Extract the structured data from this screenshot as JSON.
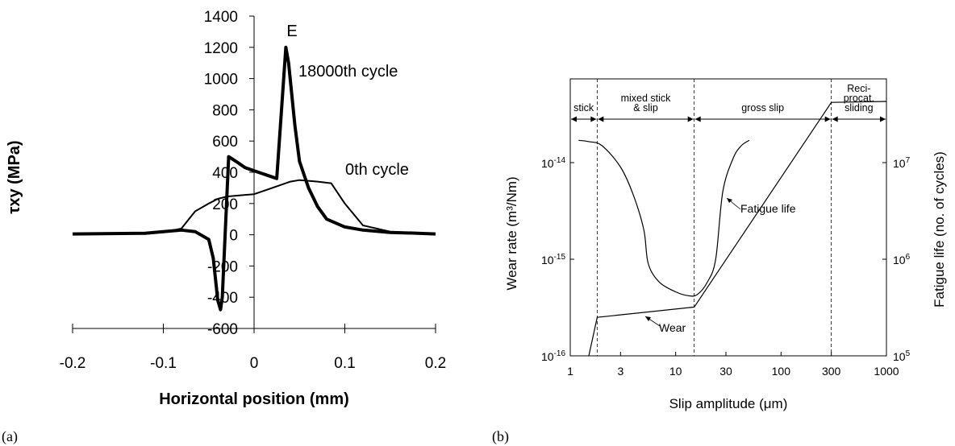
{
  "panels": {
    "a": "(a)",
    "b": "(b)"
  },
  "chart_data": [
    {
      "type": "line",
      "title": "",
      "xlabel": "Horizontal position (mm)",
      "ylabel": "τxy (MPa)",
      "xlim": [
        -0.2,
        0.2
      ],
      "ylim": [
        -600,
        1400
      ],
      "x_ticks": [
        -0.2,
        -0.1,
        0,
        0.1,
        0.2
      ],
      "x_tick_labels": [
        "-0.2",
        "-0.1",
        "0",
        "0.1",
        "0.2"
      ],
      "y_ticks": [
        -600,
        -400,
        -200,
        0,
        200,
        400,
        600,
        800,
        1000,
        1200,
        1400
      ],
      "y_tick_labels": [
        "-600",
        "-400",
        "-200",
        "0",
        "200",
        "400",
        "600",
        "800",
        "1000",
        "1200",
        "1400"
      ],
      "grid": false,
      "annotations": {
        "peak_label": "E",
        "label_18000": "18000th cycle",
        "label_0": "0th cycle"
      },
      "series": [
        {
          "name": "18000th cycle",
          "x": [
            -0.2,
            -0.12,
            -0.1,
            -0.08,
            -0.065,
            -0.05,
            -0.045,
            -0.04,
            -0.037,
            -0.035,
            -0.028,
            -0.02,
            -0.01,
            0,
            0.02,
            0.025,
            0.035,
            0.038,
            0.045,
            0.05,
            0.06,
            0.07,
            0.08,
            0.1,
            0.12,
            0.15,
            0.18,
            0.2
          ],
          "y": [
            5,
            10,
            20,
            30,
            20,
            -30,
            -150,
            -420,
            -480,
            -400,
            500,
            470,
            430,
            410,
            370,
            360,
            1200,
            1100,
            700,
            470,
            300,
            180,
            100,
            50,
            30,
            15,
            10,
            5
          ]
        },
        {
          "name": "0th cycle",
          "x": [
            -0.2,
            -0.1,
            -0.08,
            -0.065,
            -0.05,
            -0.04,
            -0.03,
            -0.02,
            -0.01,
            0,
            0.02,
            0.04,
            0.05,
            0.07,
            0.085,
            0.1,
            0.12,
            0.15,
            0.2
          ],
          "y": [
            5,
            15,
            40,
            150,
            200,
            230,
            245,
            250,
            255,
            260,
            300,
            340,
            350,
            340,
            330,
            200,
            60,
            20,
            5
          ]
        }
      ]
    },
    {
      "type": "line",
      "title": "",
      "xlabel": "Slip amplitude (μm)",
      "ylabel": "Wear rate (m³/Nm)",
      "y2label": "Fatigue life (no. of cycles)",
      "x_scale": "log",
      "xlim": [
        1,
        1000
      ],
      "x_ticks": [
        1,
        3,
        10,
        30,
        100,
        300,
        1000
      ],
      "x_tick_labels": [
        "1",
        "3",
        "10",
        "30",
        "100",
        "300",
        "1000"
      ],
      "y_scale": "log",
      "ylim": [
        1e-16,
        1e-13
      ],
      "y_ticks": [
        1e-16,
        1e-15,
        1e-14
      ],
      "y_tick_labels": [
        {
          "base": "10",
          "exp": "-16"
        },
        {
          "base": "10",
          "exp": "-15"
        },
        {
          "base": "10",
          "exp": "-14"
        }
      ],
      "y2_scale": "log",
      "y2lim": [
        100000,
        100000000
      ],
      "y2_ticks": [
        100000,
        1000000,
        10000000
      ],
      "y2_tick_labels": [
        {
          "base": "10",
          "exp": "5"
        },
        {
          "base": "10",
          "exp": "6"
        },
        {
          "base": "10",
          "exp": "7"
        }
      ],
      "grid": false,
      "regions": [
        {
          "label": "stick",
          "from": 1,
          "to": 1.8
        },
        {
          "label": "mixed stick & slip",
          "lines": [
            "mixed stick",
            "& slip"
          ],
          "from": 1.8,
          "to": 15
        },
        {
          "label": "gross slip",
          "from": 15,
          "to": 300
        },
        {
          "label": "Reci-procat. sliding",
          "lines": [
            "Reci-",
            "procat.",
            "sliding"
          ],
          "from": 300,
          "to": 1000
        }
      ],
      "region_boundaries": [
        1.8,
        15,
        300
      ],
      "annotations": {
        "wear_label": "Wear",
        "fatigue_label": "Fatigue life"
      },
      "series": [
        {
          "name": "Wear",
          "axis": "left",
          "x": [
            1.5,
            1.8,
            15,
            300,
            1000
          ],
          "y": [
            1e-16,
            2.5e-16,
            3.2e-16,
            4.2e-14,
            4.3e-14
          ]
        },
        {
          "name": "Fatigue life",
          "axis": "right",
          "x": [
            1.2,
            1.5,
            2,
            3,
            4,
            5,
            5.5,
            7,
            10,
            13,
            16,
            20,
            24,
            28,
            35,
            42,
            50
          ],
          "y": [
            17000000,
            16500000,
            15000000,
            9000000,
            4500000,
            2000000,
            900000,
            580000,
            460000,
            420000,
            430000,
            580000,
            1000000,
            5000000,
            11000000,
            15000000,
            17000000
          ]
        }
      ]
    }
  ]
}
